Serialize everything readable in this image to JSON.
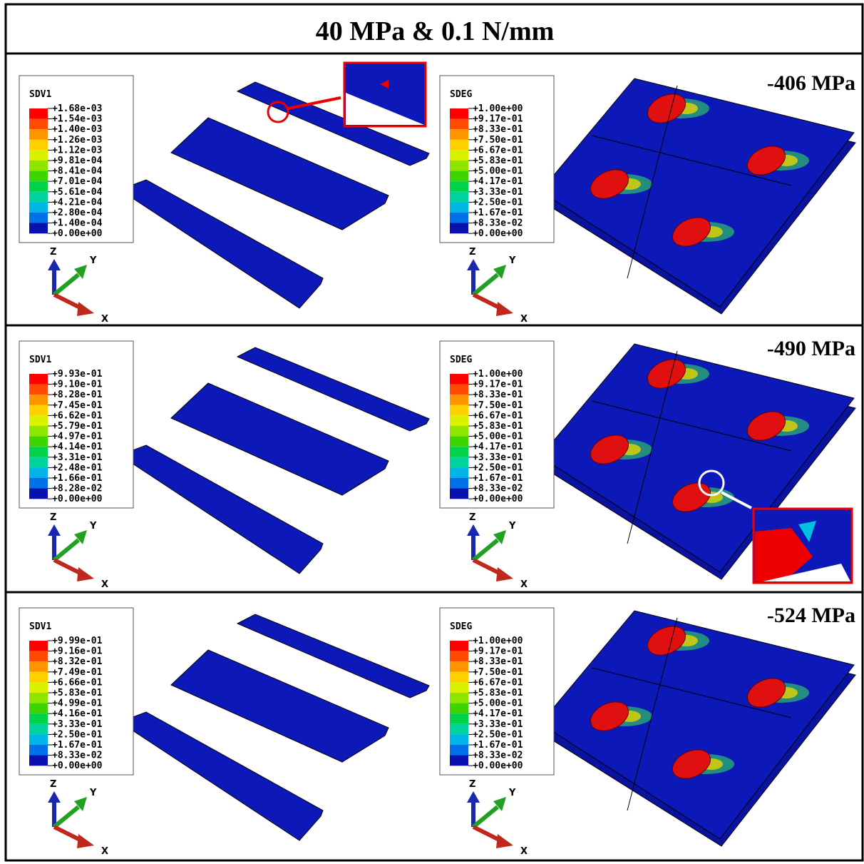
{
  "title": "40 MPa & 0.1 N/mm",
  "axes": {
    "z": "Z",
    "y": "Y",
    "x": "X"
  },
  "rows": [
    {
      "stress": "-406 MPa",
      "left": {
        "legend_title": "SDV1",
        "labels": [
          "+1.68e-03",
          "+1.54e-03",
          "+1.40e-03",
          "+1.26e-03",
          "+1.12e-03",
          "+9.81e-04",
          "+8.41e-04",
          "+7.01e-04",
          "+5.61e-04",
          "+4.21e-04",
          "+2.80e-04",
          "+1.40e-04",
          "+0.00e+00"
        ]
      },
      "right": {
        "legend_title": "SDEG",
        "labels": [
          "+1.00e+00",
          "+9.17e-01",
          "+8.33e-01",
          "+7.50e-01",
          "+6.67e-01",
          "+5.83e-01",
          "+5.00e-01",
          "+4.17e-01",
          "+3.33e-01",
          "+2.50e-01",
          "+1.67e-01",
          "+8.33e-02",
          "+0.00e+00"
        ]
      }
    },
    {
      "stress": "-490 MPa",
      "left": {
        "legend_title": "SDV1",
        "labels": [
          "+9.93e-01",
          "+9.10e-01",
          "+8.28e-01",
          "+7.45e-01",
          "+6.62e-01",
          "+5.79e-01",
          "+4.97e-01",
          "+4.14e-01",
          "+3.31e-01",
          "+2.48e-01",
          "+1.66e-01",
          "+8.28e-02",
          "+0.00e+00"
        ]
      },
      "right": {
        "legend_title": "SDEG",
        "labels": [
          "+1.00e+00",
          "+9.17e-01",
          "+8.33e-01",
          "+7.50e-01",
          "+6.67e-01",
          "+5.83e-01",
          "+5.00e-01",
          "+4.17e-01",
          "+3.33e-01",
          "+2.50e-01",
          "+1.67e-01",
          "+8.33e-02",
          "+0.00e+00"
        ]
      }
    },
    {
      "stress": "-524 MPa",
      "left": {
        "legend_title": "SDV1",
        "labels": [
          "+9.99e-01",
          "+9.16e-01",
          "+8.32e-01",
          "+7.49e-01",
          "+6.66e-01",
          "+5.83e-01",
          "+4.99e-01",
          "+4.16e-01",
          "+3.33e-01",
          "+2.50e-01",
          "+1.67e-01",
          "+8.33e-02",
          "+0.00e+00"
        ]
      },
      "right": {
        "legend_title": "SDEG",
        "labels": [
          "+1.00e+00",
          "+9.17e-01",
          "+8.33e-01",
          "+7.50e-01",
          "+6.67e-01",
          "+5.83e-01",
          "+5.00e-01",
          "+4.17e-01",
          "+3.33e-01",
          "+2.50e-01",
          "+1.67e-01",
          "+8.33e-02",
          "+0.00e+00"
        ]
      }
    }
  ]
}
